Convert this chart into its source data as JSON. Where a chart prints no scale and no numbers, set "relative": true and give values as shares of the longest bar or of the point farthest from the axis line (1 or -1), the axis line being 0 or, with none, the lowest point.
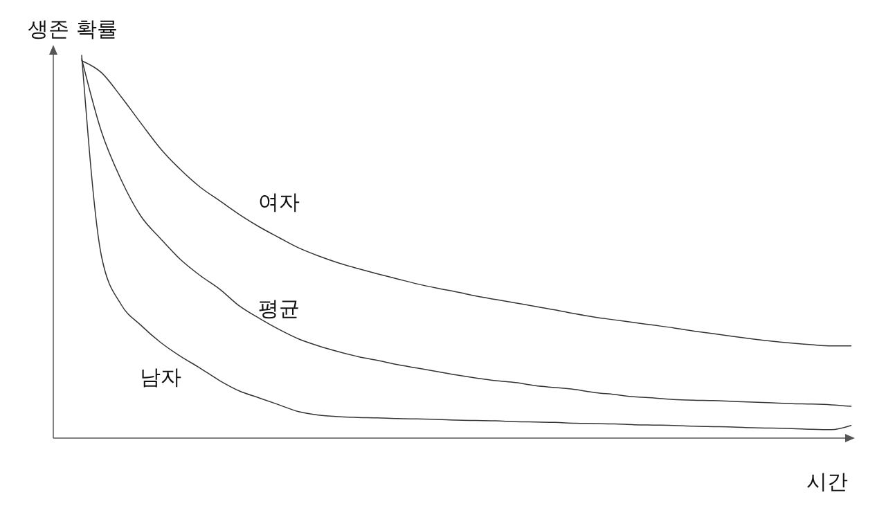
{
  "chart_data": {
    "type": "line",
    "relative": true,
    "xlabel": "시간",
    "ylabel": "생존 확률",
    "legend": false,
    "marker": "none",
    "line_style": "solid",
    "categories": [
      null,
      null,
      null,
      null,
      null,
      null,
      null,
      null,
      null,
      null,
      null,
      null,
      null,
      null,
      null,
      null,
      null,
      null,
      null,
      null,
      null,
      null,
      null,
      null,
      null,
      null,
      null,
      null,
      null,
      null,
      null,
      null,
      null,
      null,
      null,
      null,
      null,
      null,
      null,
      null
    ],
    "series": [
      {
        "name": "여자",
        "color": "#333333",
        "values": [
          0.986,
          0.955,
          0.892,
          0.823,
          0.756,
          0.702,
          0.656,
          0.62,
          0.584,
          0.552,
          0.524,
          0.497,
          0.476,
          0.458,
          0.443,
          0.429,
          0.416,
          0.403,
          0.392,
          0.382,
          0.371,
          0.362,
          0.353,
          0.344,
          0.335,
          0.325,
          0.316,
          0.309,
          0.302,
          0.295,
          0.288,
          0.28,
          0.273,
          0.266,
          0.259,
          0.253,
          0.248,
          0.244,
          0.241,
          0.241
        ]
      },
      {
        "name": "평균",
        "color": "#333333",
        "values": [
          0.991,
          0.801,
          0.675,
          0.58,
          0.521,
          0.467,
          0.425,
          0.389,
          0.345,
          0.313,
          0.284,
          0.259,
          0.241,
          0.226,
          0.213,
          0.203,
          0.192,
          0.183,
          0.174,
          0.165,
          0.157,
          0.15,
          0.145,
          0.137,
          0.132,
          0.127,
          0.119,
          0.114,
          0.108,
          0.105,
          0.101,
          0.099,
          0.098,
          0.096,
          0.094,
          0.092,
          0.09,
          0.089,
          0.087,
          0.083
        ]
      },
      {
        "name": "남자",
        "color": "#333333",
        "values": [
          1.0,
          0.476,
          0.349,
          0.295,
          0.25,
          0.214,
          0.183,
          0.15,
          0.123,
          0.105,
          0.087,
          0.069,
          0.06,
          0.056,
          0.054,
          0.053,
          0.051,
          0.05,
          0.049,
          0.047,
          0.046,
          0.045,
          0.043,
          0.042,
          0.041,
          0.039,
          0.038,
          0.037,
          0.035,
          0.034,
          0.033,
          0.031,
          0.03,
          0.029,
          0.027,
          0.026,
          0.025,
          0.023,
          0.022,
          0.033
        ]
      }
    ]
  }
}
